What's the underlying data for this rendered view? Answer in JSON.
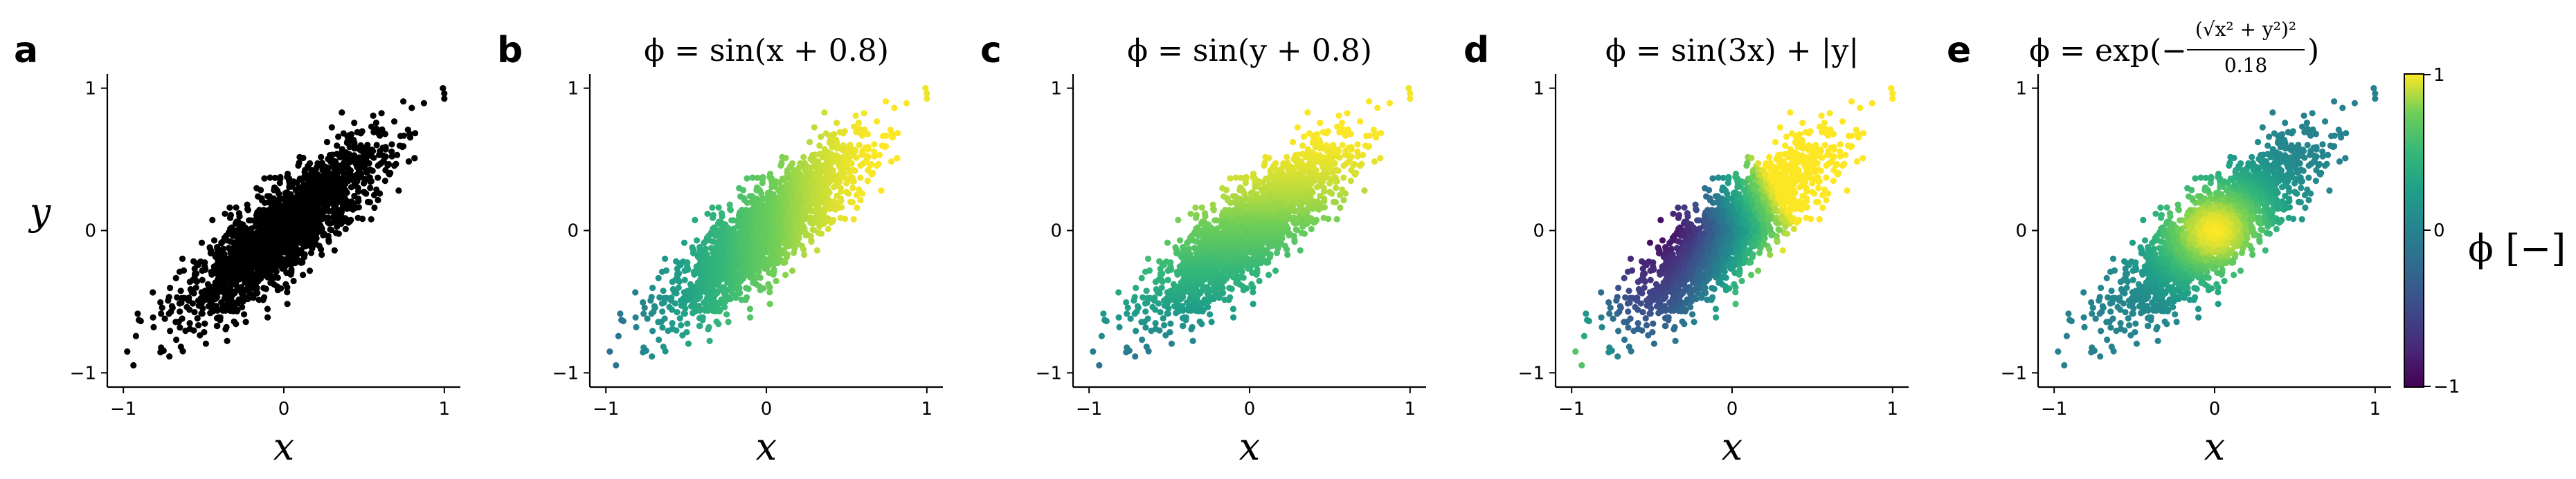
{
  "figure": {
    "panel_letters": [
      "a",
      "b",
      "c",
      "d",
      "e"
    ],
    "colorbar": {
      "label": "ϕ [−]",
      "ticks": [
        "1",
        "0",
        "−1"
      ],
      "colormap": "viridis"
    }
  },
  "chart_data": [
    {
      "type": "scatter",
      "panel": "a",
      "title": "",
      "xlabel": "x",
      "ylabel": "y",
      "xlim": [
        -1.1,
        1.1
      ],
      "ylim": [
        -1.1,
        1.1
      ],
      "xticks": [
        "−1",
        "0",
        "1"
      ],
      "yticks": [
        "1",
        "0",
        "−1"
      ],
      "color": "#000000",
      "n_points": 2000,
      "distribution": "bivariate normal, std 0.3, correlation 0.85",
      "grid": false
    },
    {
      "type": "scatter",
      "panel": "b",
      "title": "ϕ = sin(x + 0.8)",
      "xlabel": "x",
      "ylabel": "",
      "xlim": [
        -1.1,
        1.1
      ],
      "ylim": [
        -1.1,
        1.1
      ],
      "xticks": [
        "−1",
        "0",
        "1"
      ],
      "yticks": [
        "1",
        "0",
        "−1"
      ],
      "colormap": "viridis",
      "color_range": [
        -1,
        1
      ],
      "grid": false
    },
    {
      "type": "scatter",
      "panel": "c",
      "title": "ϕ = sin(y + 0.8)",
      "xlabel": "x",
      "ylabel": "",
      "xlim": [
        -1.1,
        1.1
      ],
      "ylim": [
        -1.1,
        1.1
      ],
      "xticks": [
        "−1",
        "0",
        "1"
      ],
      "yticks": [
        "1",
        "0",
        "−1"
      ],
      "colormap": "viridis",
      "color_range": [
        -1,
        1
      ],
      "grid": false
    },
    {
      "type": "scatter",
      "panel": "d",
      "title": "ϕ = sin(3x) + |y|",
      "xlabel": "x",
      "ylabel": "",
      "xlim": [
        -1.1,
        1.1
      ],
      "ylim": [
        -1.1,
        1.1
      ],
      "xticks": [
        "−1",
        "0",
        "1"
      ],
      "yticks": [
        "1",
        "0",
        "−1"
      ],
      "colormap": "viridis",
      "color_range": [
        -1,
        1
      ],
      "grid": false
    },
    {
      "type": "scatter",
      "panel": "e",
      "title": "ϕ = exp(−",
      "title_fraction_num": "(√x² + y²)²",
      "title_fraction_den": "0.18",
      "title_tail": ")",
      "xlabel": "x",
      "ylabel": "",
      "xlim": [
        -1.1,
        1.1
      ],
      "ylim": [
        -1.1,
        1.1
      ],
      "xticks": [
        "−1",
        "0",
        "1"
      ],
      "yticks": [
        "1",
        "0",
        "−1"
      ],
      "colormap": "viridis",
      "color_range": [
        -1,
        1
      ],
      "grid": false
    }
  ]
}
